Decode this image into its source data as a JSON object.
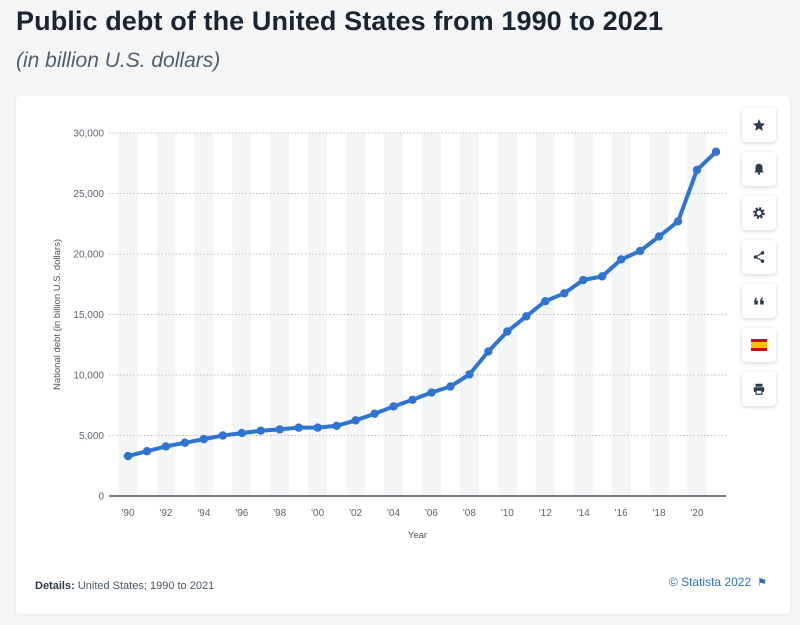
{
  "header": {
    "title": "Public debt of the United States from 1990 to 2021",
    "subtitle": "(in billion U.S. dollars)"
  },
  "footer": {
    "details_label": "Details:",
    "details_text": "United States; 1990 to 2021",
    "credit": "© Statista 2022"
  },
  "toolbar": {
    "items": [
      {
        "icon": "star-icon"
      },
      {
        "icon": "bell-icon"
      },
      {
        "icon": "gear-icon"
      },
      {
        "icon": "share-icon"
      },
      {
        "icon": "quote-icon"
      },
      {
        "icon": "spain-flag-icon"
      },
      {
        "icon": "print-icon"
      }
    ]
  },
  "colors": {
    "line": "#2f74d0",
    "band": "#f4f5f7",
    "grid": "#b9bec5"
  },
  "chart_data": {
    "type": "line",
    "title": "",
    "xlabel": "Year",
    "ylabel": "National debt (in billion U.S. dollars)",
    "ylim": [
      0,
      30000
    ],
    "yticks": [
      0,
      5000,
      10000,
      15000,
      20000,
      25000,
      30000
    ],
    "ytick_labels": [
      "0",
      "5,000",
      "10,000",
      "15,000",
      "20,000",
      "25,000",
      "30,000"
    ],
    "xtick_labels": [
      "'90",
      "'92",
      "'94",
      "'96",
      "'98",
      "'00",
      "'02",
      "'04",
      "'06",
      "'08",
      "'10",
      "'12",
      "'14",
      "'16",
      "'18",
      "'20"
    ],
    "grid": true,
    "x": [
      1990,
      1991,
      1992,
      1993,
      1994,
      1995,
      1996,
      1997,
      1998,
      1999,
      2000,
      2001,
      2002,
      2003,
      2004,
      2005,
      2006,
      2007,
      2008,
      2009,
      2010,
      2011,
      2012,
      2013,
      2014,
      2015,
      2016,
      2017,
      2018,
      2019,
      2020,
      2021
    ],
    "series": [
      {
        "values": [
          3300,
          3700,
          4100,
          4400,
          4700,
          5000,
          5200,
          5400,
          5500,
          5650,
          5650,
          5800,
          6250,
          6800,
          7400,
          7950,
          8550,
          9050,
          10050,
          11950,
          13600,
          14850,
          16100,
          16750,
          17850,
          18150,
          19550,
          20250,
          21450,
          22700,
          26950,
          28450
        ]
      }
    ]
  }
}
